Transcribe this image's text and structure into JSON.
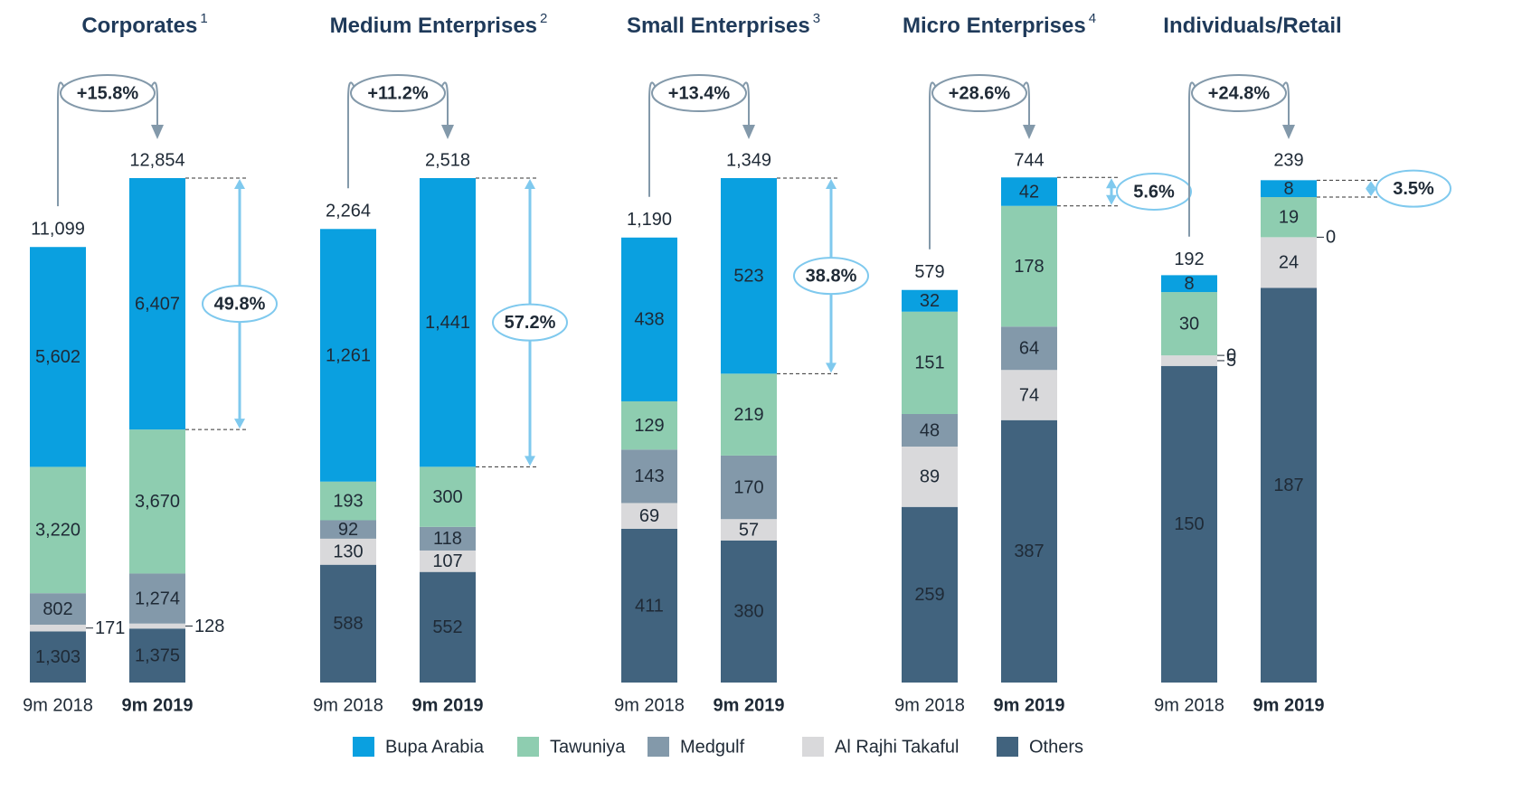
{
  "legend": [
    {
      "name": "Bupa Arabia",
      "color": "#0aa0e0"
    },
    {
      "name": "Tawuniya",
      "color": "#8ecdb0"
    },
    {
      "name": "Medgulf",
      "color": "#8399aa"
    },
    {
      "name": "Al Rajhi Takaful",
      "color": "#d9d9db"
    },
    {
      "name": "Others",
      "color": "#41637e"
    }
  ],
  "chart_data": [
    {
      "type": "bar",
      "title": "Corporates",
      "note": "1",
      "categories": [
        "9m 2018",
        "9m 2019"
      ],
      "series": [
        {
          "values": [
            5602,
            6407
          ],
          "value_labels": [
            "5,602",
            "6,407"
          ]
        },
        {
          "values": [
            3220,
            3670
          ],
          "value_labels": [
            "3,220",
            "3,670"
          ]
        },
        {
          "values": [
            802,
            1274
          ],
          "value_labels": [
            "802",
            "1,274"
          ]
        },
        {
          "values": [
            171,
            128
          ]
        },
        {
          "values": [
            1303,
            1375
          ],
          "value_labels": [
            "1,303",
            "1,375"
          ]
        }
      ],
      "totals": [
        11099,
        12854
      ],
      "total_labels": [
        "11,099",
        "12,854"
      ],
      "growth": "+15.8%",
      "share": "49.8%"
    },
    {
      "type": "bar",
      "title": "Medium Enterprises",
      "note": "2",
      "categories": [
        "9m 2018",
        "9m 2019"
      ],
      "series": [
        {
          "values": [
            1261,
            1441
          ],
          "value_labels": [
            "1,261",
            "1,441"
          ]
        },
        {
          "values": [
            193,
            300
          ]
        },
        {
          "values": [
            92,
            118
          ]
        },
        {
          "values": [
            130,
            107
          ]
        },
        {
          "values": [
            588,
            552
          ]
        }
      ],
      "totals": [
        2264,
        2518
      ],
      "total_labels": [
        "2,264",
        "2,518"
      ],
      "growth": "+11.2%",
      "share": "57.2%"
    },
    {
      "type": "bar",
      "title": "Small Enterprises",
      "note": "3",
      "categories": [
        "9m 2018",
        "9m 2019"
      ],
      "series": [
        {
          "values": [
            438,
            523
          ]
        },
        {
          "values": [
            129,
            219
          ]
        },
        {
          "values": [
            143,
            170
          ]
        },
        {
          "values": [
            69,
            57
          ]
        },
        {
          "values": [
            411,
            380
          ]
        }
      ],
      "totals": [
        1190,
        1349
      ],
      "total_labels": [
        "1,190",
        "1,349"
      ],
      "growth": "+13.4%",
      "share": "38.8%"
    },
    {
      "type": "bar",
      "title": "Micro Enterprises",
      "note": "4",
      "categories": [
        "9m 2018",
        "9m 2019"
      ],
      "series": [
        {
          "values": [
            32,
            42
          ]
        },
        {
          "values": [
            151,
            178
          ]
        },
        {
          "values": [
            48,
            64
          ]
        },
        {
          "values": [
            89,
            74
          ]
        },
        {
          "values": [
            259,
            387
          ]
        }
      ],
      "totals": [
        579,
        744
      ],
      "growth": "+28.6%",
      "share": "5.6%"
    },
    {
      "type": "bar",
      "title": "Individuals/Retail",
      "categories": [
        "9m 2018",
        "9m 2019"
      ],
      "series": [
        {
          "values": [
            8,
            8
          ]
        },
        {
          "values": [
            30,
            19
          ]
        },
        {
          "values": [
            0,
            0
          ]
        },
        {
          "values": [
            5,
            24
          ]
        },
        {
          "values": [
            150,
            187
          ]
        }
      ],
      "totals": [
        192,
        239
      ],
      "growth": "+24.8%",
      "share": "3.5%"
    }
  ]
}
